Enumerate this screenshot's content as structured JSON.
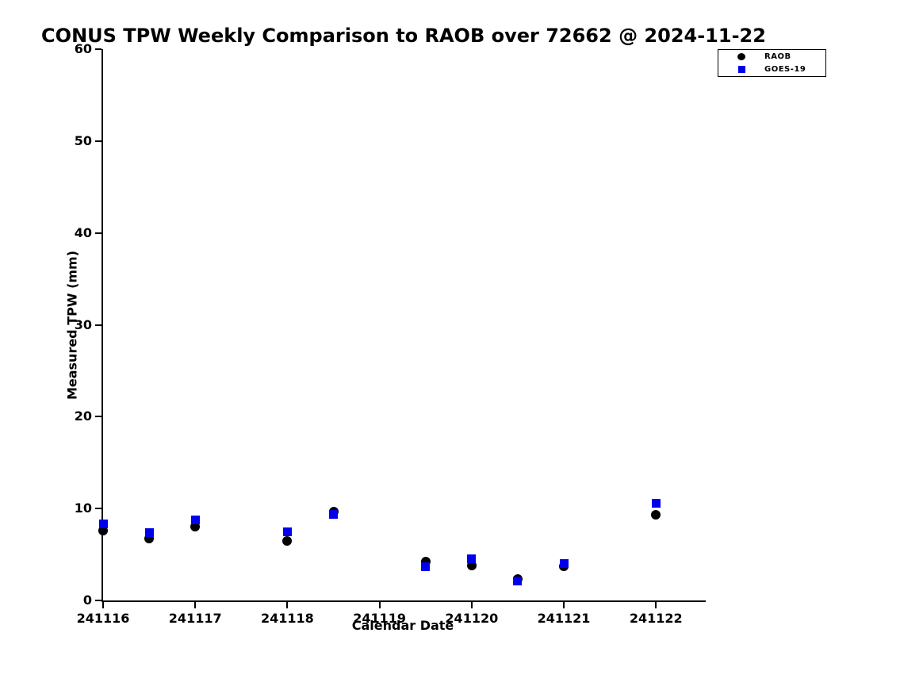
{
  "title": "CONUS TPW Weekly Comparison to RAOB over 72662 @ 2024-11-22",
  "chart_data": {
    "type": "scatter",
    "title": "CONUS TPW Weekly Comparison to RAOB over 72662 @ 2024-11-22",
    "xlabel": "Calendar Date",
    "ylabel": "Measured TPW (mm)",
    "x_tick_labels": [
      "241116",
      "241117",
      "241118",
      "241119",
      "241120",
      "241121",
      "241122"
    ],
    "y_ticks": [
      0,
      10,
      20,
      30,
      40,
      50,
      60
    ],
    "ylim": [
      0,
      60
    ],
    "xlim_day_offsets": [
      0,
      6.54
    ],
    "grid": false,
    "legend_position": "outside-top-right",
    "x_date_codes": [
      241116,
      241116.5,
      241117,
      241118,
      241118.5,
      241119.5,
      241120,
      241120.5,
      241121,
      241122
    ],
    "x_day_offsets": [
      0,
      0.5,
      1,
      2,
      2.5,
      3.5,
      4,
      4.5,
      5,
      6
    ],
    "series": [
      {
        "name": "RAOB",
        "marker": "circle",
        "color": "#000000",
        "values": [
          7.6,
          6.7,
          8.0,
          6.5,
          9.7,
          4.2,
          3.8,
          2.3,
          3.7,
          9.3
        ]
      },
      {
        "name": "GOES-19",
        "marker": "square",
        "color": "#0000ee",
        "values": [
          8.3,
          7.4,
          8.8,
          7.5,
          9.4,
          3.7,
          4.5,
          2.1,
          4.0,
          10.6
        ]
      }
    ]
  }
}
